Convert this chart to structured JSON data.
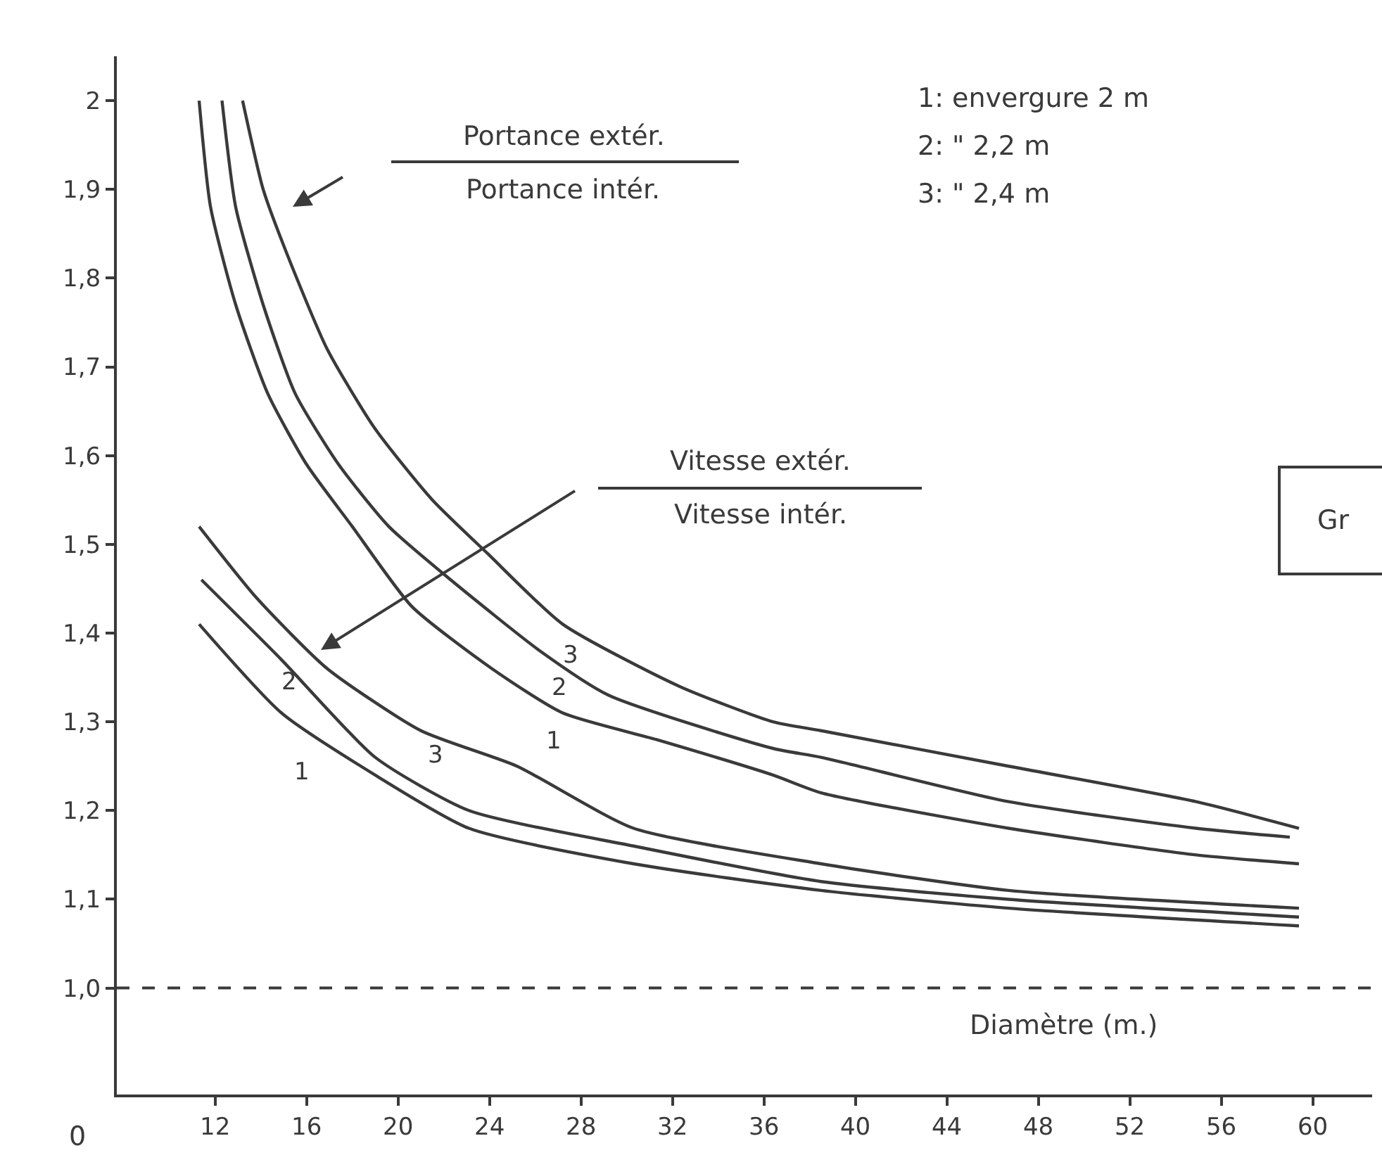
{
  "chart_data": {
    "type": "line",
    "xlabel": "Diamètre (m.)",
    "xlim": [
      7.7,
      62.6
    ],
    "xticks": [
      12,
      16,
      20,
      24,
      28,
      32,
      36,
      40,
      44,
      48,
      52,
      56,
      60
    ],
    "ylim": [
      0.88,
      2.05
    ],
    "yticks": [
      {
        "value": 1.0,
        "label": "1,0"
      },
      {
        "value": 1.1,
        "label": "1,1"
      },
      {
        "value": 1.2,
        "label": "1,2"
      },
      {
        "value": 1.3,
        "label": "1,3"
      },
      {
        "value": 1.4,
        "label": "1,4"
      },
      {
        "value": 1.5,
        "label": "1,5"
      },
      {
        "value": 1.6,
        "label": "1,6"
      },
      {
        "value": 1.7,
        "label": "1,7"
      },
      {
        "value": 1.8,
        "label": "1,8"
      },
      {
        "value": 1.9,
        "label": "1,9"
      },
      2
    ],
    "grid": false,
    "legend": false,
    "marker": "none",
    "line_style": "solid",
    "series": [
      {
        "name": "1",
        "color": "#3a3a3a",
        "x": [
          11.3,
          11.8,
          12.9,
          14.3,
          16.0,
          18.0,
          20.6,
          24.1,
          27.2,
          31.3,
          36.4,
          38.5,
          46.7,
          54.9,
          59.4
        ],
        "values": [
          2.0,
          1.88,
          1.77,
          1.67,
          1.59,
          1.52,
          1.43,
          1.36,
          1.31,
          1.28,
          1.24,
          1.22,
          1.18,
          1.15,
          1.14
        ]
      },
      {
        "name": "2",
        "color": "#3a3a3a",
        "x": [
          12.3,
          12.9,
          14.1,
          15.5,
          17.4,
          19.6,
          22.3,
          26.2,
          29.2,
          36.4,
          38.5,
          46.7,
          54.9,
          59.0
        ],
        "values": [
          2.0,
          1.88,
          1.77,
          1.67,
          1.59,
          1.52,
          1.46,
          1.38,
          1.33,
          1.27,
          1.26,
          1.21,
          1.18,
          1.17
        ]
      },
      {
        "name": "3",
        "color": "#3a3a3a",
        "x": [
          13.2,
          14.1,
          15.1,
          16.9,
          19.0,
          21.5,
          23.9,
          27.2,
          32.3,
          36.4,
          38.5,
          46.7,
          54.9,
          59.4
        ],
        "values": [
          2.0,
          1.9,
          1.83,
          1.72,
          1.63,
          1.55,
          1.49,
          1.41,
          1.34,
          1.3,
          1.29,
          1.25,
          1.21,
          1.18
        ]
      },
      {
        "name": "1",
        "color": "#3a3a3a",
        "x": [
          11.3,
          14.9,
          19.0,
          23.1,
          30.3,
          38.5,
          46.7,
          59.4
        ],
        "values": [
          1.41,
          1.31,
          1.24,
          1.18,
          1.14,
          1.11,
          1.09,
          1.07
        ]
      },
      {
        "name": "2",
        "color": "#3a3a3a",
        "x": [
          11.4,
          14.9,
          19.0,
          23.1,
          30.3,
          38.5,
          46.7,
          59.4
        ],
        "values": [
          1.46,
          1.37,
          1.26,
          1.2,
          1.16,
          1.12,
          1.1,
          1.08
        ]
      },
      {
        "name": "3",
        "color": "#3a3a3a",
        "x": [
          11.3,
          13.8,
          16.9,
          21.0,
          25.2,
          30.3,
          38.5,
          46.7,
          59.4
        ],
        "values": [
          1.52,
          1.44,
          1.36,
          1.29,
          1.25,
          1.18,
          1.14,
          1.11,
          1.09
        ]
      }
    ],
    "ref_lines": [
      {
        "axis": "y",
        "value": 1.0,
        "color": "#3a3a3a",
        "line_style": "dashed"
      }
    ],
    "annotations": [
      "Portance extér.",
      "Portance intér.",
      "Vitesse extér.",
      "Vitesse intér.",
      "1: envergure 2 m",
      "2: \" 2,2 m",
      "3: \" 2,4 m",
      "0",
      "Gr"
    ]
  }
}
